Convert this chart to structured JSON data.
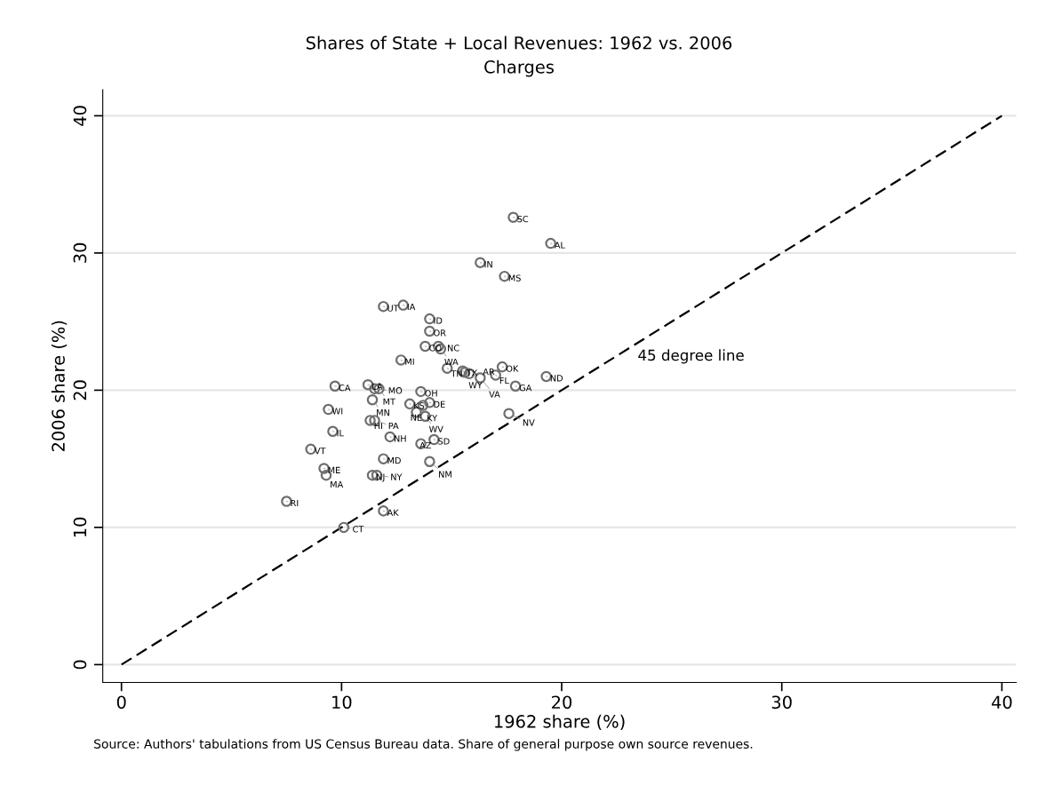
{
  "chart_data": {
    "type": "scatter",
    "title": "Shares of State + Local Revenues: 1962 vs. 2006",
    "subtitle": "Charges",
    "xlabel": "1962 share (%)",
    "ylabel": "2006 share (%)",
    "xlim": [
      -0.85,
      40.65
    ],
    "ylim": [
      -1.3,
      41.9
    ],
    "xticks": [
      0,
      10,
      20,
      30,
      40
    ],
    "yticks": [
      0,
      10,
      20,
      30,
      40
    ],
    "grid": "y",
    "legend": false,
    "series": [
      {
        "color": "#6e6e6e",
        "marker": "circle",
        "x": [
          17.8,
          19.5,
          16.3,
          17.4,
          11.9,
          12.8,
          14.0,
          14.0,
          13.8,
          14.4,
          14.5,
          12.7,
          14.8,
          15.5,
          15.6,
          15.8,
          16.3,
          17.0,
          17.3,
          17.9,
          19.3,
          17.6,
          9.7,
          11.2,
          11.5,
          11.7,
          11.4,
          13.6,
          13.1,
          13.7,
          14.0,
          13.4,
          13.8,
          9.4,
          11.3,
          11.5,
          9.6,
          12.2,
          13.6,
          14.2,
          8.6,
          11.9,
          14.0,
          9.2,
          9.3,
          11.4,
          11.6,
          7.5,
          11.9,
          10.1
        ],
        "values": [
          32.6,
          30.7,
          29.3,
          28.3,
          26.1,
          26.2,
          25.2,
          24.3,
          23.2,
          23.2,
          23.0,
          22.2,
          21.6,
          21.4,
          21.3,
          21.2,
          20.9,
          21.1,
          21.7,
          20.3,
          21.0,
          18.3,
          20.3,
          20.4,
          20.1,
          20.1,
          19.3,
          19.9,
          19.0,
          18.9,
          19.1,
          18.4,
          18.1,
          18.6,
          17.8,
          17.8,
          17.0,
          16.6,
          16.1,
          16.4,
          15.7,
          15.0,
          14.8,
          14.3,
          13.8,
          13.8,
          13.8,
          11.9,
          11.2,
          10.0
        ]
      },
      {
        "type": "line",
        "name": "45 degree line",
        "color": "#000000",
        "line_style": "dashed",
        "x": [
          0,
          40
        ],
        "values": [
          0,
          40
        ]
      }
    ],
    "annotations": [
      {
        "text": "SC",
        "x": 17.8,
        "y": 32.6
      },
      {
        "text": "AL",
        "x": 19.5,
        "y": 30.7
      },
      {
        "text": "IN",
        "x": 16.3,
        "y": 29.3
      },
      {
        "text": "MS",
        "x": 17.4,
        "y": 28.3
      },
      {
        "text": "UT",
        "x": 11.9,
        "y": 26.1
      },
      {
        "text": "IA",
        "x": 12.8,
        "y": 26.2
      },
      {
        "text": "ID",
        "x": 14.0,
        "y": 25.2
      },
      {
        "text": "OR",
        "x": 14.0,
        "y": 24.3
      },
      {
        "text": "CO",
        "x": 13.8,
        "y": 23.2
      },
      {
        "text": "NC",
        "x": 14.4,
        "y": 23.2
      },
      {
        "text": "WA",
        "x": 14.5,
        "y": 23.0
      },
      {
        "text": "MI",
        "x": 12.7,
        "y": 22.2
      },
      {
        "text": "TN",
        "x": 14.8,
        "y": 21.6
      },
      {
        "text": "TX",
        "x": 15.5,
        "y": 21.4
      },
      {
        "text": "WY",
        "x": 15.6,
        "y": 21.3
      },
      {
        "text": "AR",
        "x": 15.8,
        "y": 21.2
      },
      {
        "text": "VA",
        "x": 16.3,
        "y": 20.9
      },
      {
        "text": "FL",
        "x": 17.0,
        "y": 21.1
      },
      {
        "text": "OK",
        "x": 17.3,
        "y": 21.7
      },
      {
        "text": "GA",
        "x": 17.9,
        "y": 20.3
      },
      {
        "text": "ND",
        "x": 19.3,
        "y": 21.0
      },
      {
        "text": "NV",
        "x": 17.6,
        "y": 18.3
      },
      {
        "text": "CA",
        "x": 9.7,
        "y": 20.3
      },
      {
        "text": "LA",
        "x": 11.2,
        "y": 20.4
      },
      {
        "text": "MO",
        "x": 11.5,
        "y": 20.1
      },
      {
        "text": "MT",
        "x": 11.7,
        "y": 20.1
      },
      {
        "text": "MN",
        "x": 11.4,
        "y": 19.3
      },
      {
        "text": "OH",
        "x": 13.6,
        "y": 19.9
      },
      {
        "text": "KS",
        "x": 13.1,
        "y": 19.0
      },
      {
        "text": "KY",
        "x": 13.7,
        "y": 18.9
      },
      {
        "text": "DE",
        "x": 14.0,
        "y": 19.1
      },
      {
        "text": "NE",
        "x": 13.4,
        "y": 18.4
      },
      {
        "text": "WV",
        "x": 13.8,
        "y": 18.1
      },
      {
        "text": "WI",
        "x": 9.4,
        "y": 18.6
      },
      {
        "text": "HI",
        "x": 11.3,
        "y": 17.8
      },
      {
        "text": "PA",
        "x": 11.5,
        "y": 17.8
      },
      {
        "text": "IL",
        "x": 9.6,
        "y": 17.0
      },
      {
        "text": "NH",
        "x": 12.2,
        "y": 16.6
      },
      {
        "text": "AZ",
        "x": 13.6,
        "y": 16.1
      },
      {
        "text": "SD",
        "x": 14.2,
        "y": 16.4
      },
      {
        "text": "VT",
        "x": 8.6,
        "y": 15.7
      },
      {
        "text": "MD",
        "x": 11.9,
        "y": 15.0
      },
      {
        "text": "NM",
        "x": 14.0,
        "y": 14.8
      },
      {
        "text": "ME",
        "x": 9.2,
        "y": 14.3
      },
      {
        "text": "MA",
        "x": 9.3,
        "y": 13.8
      },
      {
        "text": "NJ",
        "x": 11.4,
        "y": 13.8
      },
      {
        "text": "NY",
        "x": 11.6,
        "y": 13.8
      },
      {
        "text": "RI",
        "x": 7.5,
        "y": 11.9
      },
      {
        "text": "AK",
        "x": 11.9,
        "y": 11.2
      },
      {
        "text": "CT",
        "x": 10.1,
        "y": 10.0
      },
      "Source: Authors' tabulations from US Census Bureau data. Share of general purpose own source revenues."
    ]
  }
}
